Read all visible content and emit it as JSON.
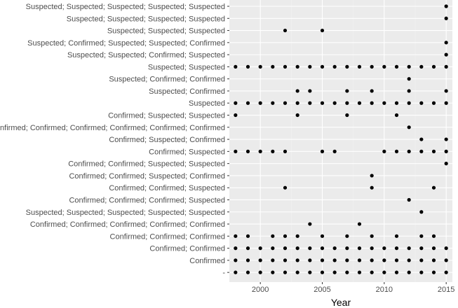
{
  "chart_data": {
    "type": "scatter",
    "xlabel": "Year",
    "ylabel": "",
    "xlim": [
      1997.5,
      2015.5
    ],
    "x_ticks": [
      2000,
      2005,
      2010,
      2015
    ],
    "grid": true,
    "categories": [
      "Suspected; Suspected; Suspected; Suspected; Suspected",
      "Suspected; Suspected; Suspected; Suspected",
      "Suspected; Suspected; Suspected",
      "Suspected; Confirmed; Suspected; Suspected; Confirmed",
      "Suspected; Suspected; Confirmed; Suspected",
      "Suspected; Suspected",
      "Suspected; Confirmed; Confirmed",
      "Suspected; Confirmed",
      "Suspected",
      "Confirmed; Suspected; Suspected",
      "Confirmed; Confirmed; Confirmed; Confirmed; Confirmed; Confirmed",
      "Confirmed; Suspected; Confirmed",
      "Confirmed; Suspected",
      "Confirmed; Confirmed; Suspected; Suspected",
      "Confirmed; Confirmed; Suspected; Confirmed",
      "Confirmed; Confirmed; Suspected",
      "Confirmed; Confirmed; Confirmed; Suspected",
      "Suspected; Suspected; Suspected; Suspected; Suspected",
      "Confirmed; Confirmed; Confirmed; Confirmed; Confirmed",
      "Confirmed; Confirmed; Confirmed",
      "Confirmed; Confirmed",
      "Confirmed",
      "-"
    ],
    "points": [
      [
        2015
      ],
      [
        2015
      ],
      [
        2002,
        2005
      ],
      [
        2015
      ],
      [
        2015
      ],
      [
        1998,
        1999,
        2000,
        2001,
        2002,
        2003,
        2004,
        2005,
        2006,
        2007,
        2008,
        2009,
        2010,
        2011,
        2012,
        2013,
        2014,
        2015
      ],
      [
        2012
      ],
      [
        2003,
        2004,
        2007,
        2009,
        2012,
        2015
      ],
      [
        1998,
        1999,
        2000,
        2001,
        2002,
        2003,
        2004,
        2005,
        2006,
        2007,
        2008,
        2009,
        2010,
        2011,
        2012,
        2013,
        2014,
        2015
      ],
      [
        1998,
        2003,
        2007,
        2011
      ],
      [
        2012
      ],
      [
        2013,
        2015
      ],
      [
        1998,
        1999,
        2000,
        2001,
        2002,
        2005,
        2006,
        2010,
        2011,
        2012,
        2013,
        2014,
        2015
      ],
      [
        2015
      ],
      [
        2009
      ],
      [
        2002,
        2009,
        2014
      ],
      [
        2012
      ],
      [
        2013
      ],
      [
        2004,
        2008
      ],
      [
        1998,
        1999,
        2001,
        2002,
        2003,
        2005,
        2007,
        2009,
        2011,
        2013,
        2014
      ],
      [
        1998,
        1999,
        2000,
        2001,
        2002,
        2003,
        2004,
        2005,
        2006,
        2007,
        2008,
        2009,
        2010,
        2011,
        2012,
        2013,
        2014,
        2015
      ],
      [
        1998,
        1999,
        2000,
        2001,
        2002,
        2003,
        2004,
        2005,
        2006,
        2007,
        2008,
        2009,
        2010,
        2011,
        2012,
        2013,
        2014,
        2015
      ],
      [
        1998,
        1999,
        2000,
        2001,
        2002,
        2003,
        2004,
        2005,
        2006,
        2007,
        2008,
        2009,
        2010,
        2011,
        2012,
        2013,
        2014,
        2015
      ]
    ],
    "colors": {
      "panel_background": "#ebebeb",
      "grid_major": "#ffffff",
      "grid_minor": "#f2f2f2",
      "point": "#000000",
      "tick_text": "#4d4d4d",
      "tick_mark": "#333333"
    }
  }
}
